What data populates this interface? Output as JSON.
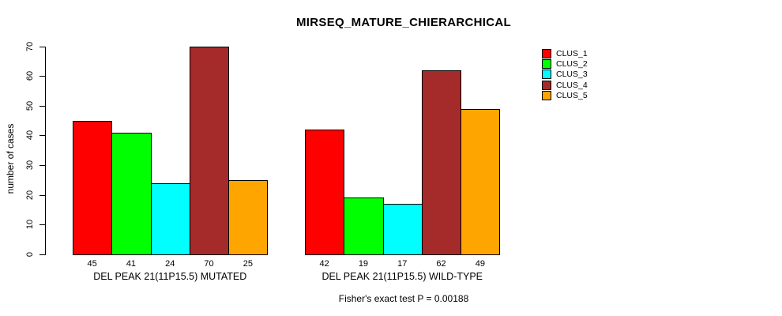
{
  "chart_data": {
    "type": "bar",
    "title": "MIRSEQ_MATURE_CHIERARCHICAL",
    "ylabel": "number of cases",
    "xlabel": "",
    "ylim": [
      0,
      70
    ],
    "yticks": [
      0,
      10,
      20,
      30,
      40,
      50,
      60,
      70
    ],
    "grid": false,
    "legend_position": "top-right",
    "groups": [
      "DEL PEAK 21(11P15.5) MUTATED",
      "DEL PEAK 21(11P15.5) WILD-TYPE"
    ],
    "series": [
      {
        "name": "CLUS_1",
        "color": "#FF0000",
        "values": [
          45,
          42
        ]
      },
      {
        "name": "CLUS_2",
        "color": "#00FF00",
        "values": [
          41,
          19
        ]
      },
      {
        "name": "CLUS_3",
        "color": "#00FFFF",
        "values": [
          24,
          17
        ]
      },
      {
        "name": "CLUS_4",
        "color": "#A52A2A",
        "values": [
          70,
          62
        ]
      },
      {
        "name": "CLUS_5",
        "color": "#FFA500",
        "values": [
          25,
          49
        ]
      }
    ],
    "bar_value_labels": [
      [
        45,
        41,
        24,
        70,
        25
      ],
      [
        42,
        19,
        17,
        62,
        49
      ]
    ],
    "annotation": "Fisher's exact test P = 0.00188"
  }
}
